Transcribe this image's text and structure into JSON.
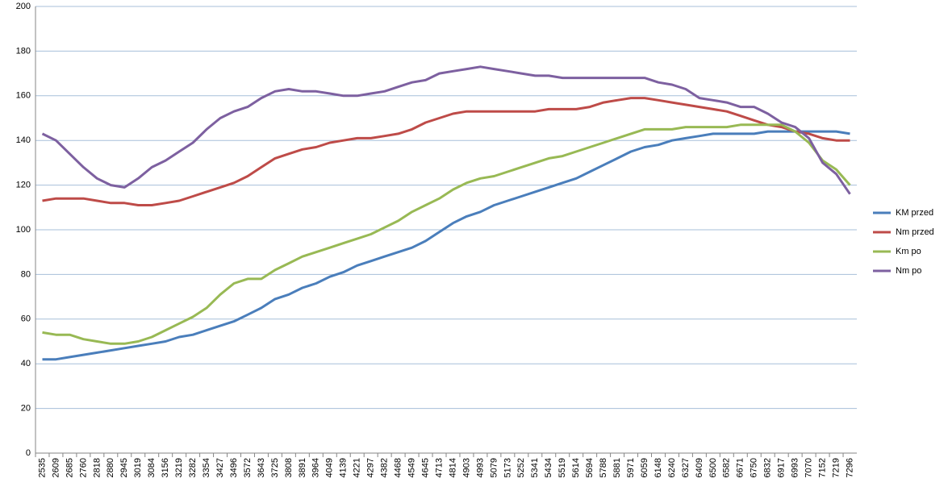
{
  "chart_data": {
    "type": "line",
    "categories": [
      "2535",
      "2609",
      "2685",
      "2760",
      "2818",
      "2880",
      "2945",
      "3019",
      "3084",
      "3156",
      "3219",
      "3282",
      "3354",
      "3427",
      "3496",
      "3572",
      "3643",
      "3725",
      "3808",
      "3891",
      "3964",
      "4049",
      "4139",
      "4221",
      "4297",
      "4382",
      "4468",
      "4549",
      "4645",
      "4713",
      "4814",
      "4903",
      "4993",
      "5079",
      "5173",
      "5252",
      "5341",
      "5434",
      "5519",
      "5614",
      "5694",
      "5788",
      "5881",
      "5971",
      "6059",
      "6148",
      "6240",
      "6327",
      "6409",
      "6500",
      "6582",
      "6671",
      "6750",
      "6832",
      "6917",
      "6993",
      "7070",
      "7152",
      "7219",
      "7296"
    ],
    "series": [
      {
        "name": "KM przed",
        "color": "#4a7ebb",
        "values": [
          42,
          42,
          43,
          44,
          45,
          46,
          47,
          48,
          49,
          50,
          52,
          53,
          55,
          57,
          59,
          62,
          65,
          69,
          71,
          74,
          76,
          79,
          81,
          84,
          86,
          88,
          90,
          92,
          95,
          99,
          103,
          106,
          108,
          111,
          113,
          115,
          117,
          119,
          121,
          123,
          126,
          129,
          132,
          135,
          137,
          138,
          140,
          141,
          142,
          143,
          143,
          143,
          143,
          144,
          144,
          144,
          144,
          144,
          144,
          143
        ]
      },
      {
        "name": "Nm przed",
        "color": "#be4b48",
        "values": [
          113,
          114,
          114,
          114,
          113,
          112,
          112,
          111,
          111,
          112,
          113,
          115,
          117,
          119,
          121,
          124,
          128,
          132,
          134,
          136,
          137,
          139,
          140,
          141,
          141,
          142,
          143,
          145,
          148,
          150,
          152,
          153,
          153,
          153,
          153,
          153,
          153,
          154,
          154,
          154,
          155,
          157,
          158,
          159,
          159,
          158,
          157,
          156,
          155,
          154,
          153,
          151,
          149,
          147,
          146,
          144,
          143,
          141,
          140,
          140
        ]
      },
      {
        "name": "Km po",
        "color": "#98b954",
        "values": [
          54,
          53,
          53,
          51,
          50,
          49,
          49,
          50,
          52,
          55,
          58,
          61,
          65,
          71,
          76,
          78,
          78,
          82,
          85,
          88,
          90,
          92,
          94,
          96,
          98,
          101,
          104,
          108,
          111,
          114,
          118,
          121,
          123,
          124,
          126,
          128,
          130,
          132,
          133,
          135,
          137,
          139,
          141,
          143,
          145,
          145,
          145,
          146,
          146,
          146,
          146,
          147,
          147,
          147,
          147,
          144,
          139,
          131,
          127,
          120
        ]
      },
      {
        "name": "Nm po",
        "color": "#7d60a0",
        "values": [
          143,
          140,
          134,
          128,
          123,
          120,
          119,
          123,
          128,
          131,
          135,
          139,
          145,
          150,
          153,
          155,
          159,
          162,
          163,
          162,
          162,
          161,
          160,
          160,
          161,
          162,
          164,
          166,
          167,
          170,
          171,
          172,
          173,
          172,
          171,
          170,
          169,
          169,
          168,
          168,
          168,
          168,
          168,
          168,
          168,
          166,
          165,
          163,
          159,
          158,
          157,
          155,
          155,
          152,
          148,
          146,
          141,
          130,
          125,
          116
        ]
      }
    ],
    "ylim": [
      0,
      200
    ],
    "yticks": [
      0,
      20,
      40,
      60,
      80,
      100,
      120,
      140,
      160,
      180,
      200
    ],
    "grid": true,
    "legend": "right"
  }
}
